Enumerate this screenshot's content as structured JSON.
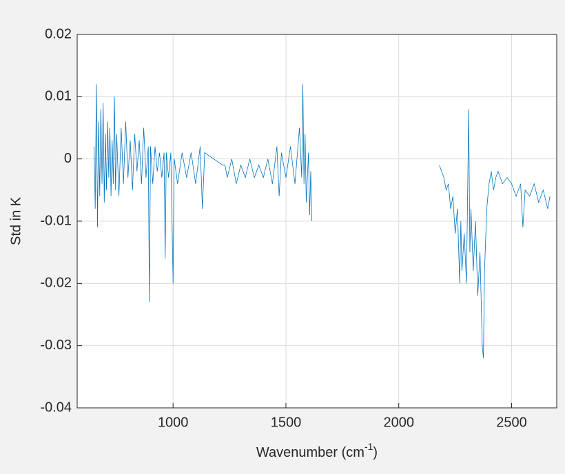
{
  "chart_data": {
    "type": "line",
    "ylabel": "Std in K",
    "xlabel": [
      "Wavenumber (cm",
      "-1",
      ")"
    ],
    "color": "#0072bd",
    "grid": true,
    "xlim": [
      575,
      2700
    ],
    "xticks": [
      1000,
      1500,
      2000,
      2500
    ],
    "ylim": [
      -0.04,
      0.02
    ],
    "yticks": [
      0.02,
      0.01,
      0,
      -0.01,
      -0.02,
      -0.03,
      -0.04
    ],
    "x": [
      650,
      655,
      660,
      665,
      670,
      675,
      680,
      685,
      690,
      695,
      700,
      705,
      710,
      715,
      720,
      725,
      730,
      735,
      740,
      745,
      750,
      760,
      770,
      780,
      790,
      800,
      810,
      820,
      830,
      840,
      850,
      860,
      870,
      880,
      890,
      895,
      900,
      910,
      920,
      930,
      940,
      950,
      960,
      965,
      970,
      980,
      990,
      1000,
      1005,
      1020,
      1040,
      1060,
      1080,
      1100,
      1120,
      1130,
      1140,
      1220,
      1230,
      1240,
      1260,
      1280,
      1300,
      1320,
      1340,
      1360,
      1380,
      1400,
      1420,
      1440,
      1460,
      1470,
      1480,
      1500,
      1520,
      1540,
      1560,
      1570,
      1575,
      1580,
      1585,
      1590,
      1600,
      1605,
      1610,
      1615,
      1900,
      2180,
      2190,
      2200,
      2210,
      2220,
      2230,
      2240,
      2250,
      2260,
      2270,
      2275,
      2280,
      2290,
      2300,
      2310,
      2315,
      2320,
      2330,
      2340,
      2350,
      2360,
      2370,
      2375,
      2380,
      2390,
      2400,
      2410,
      2420,
      2430,
      2440,
      2460,
      2480,
      2500,
      2520,
      2540,
      2550,
      2560,
      2580,
      2600,
      2620,
      2640,
      2660,
      2670
    ],
    "values": [
      0.002,
      -0.008,
      0.012,
      -0.011,
      0.006,
      -0.006,
      0.008,
      -0.004,
      0.009,
      -0.007,
      0.004,
      -0.005,
      0.006,
      -0.003,
      0.005,
      -0.006,
      0.003,
      -0.004,
      0.01,
      -0.005,
      0.004,
      -0.006,
      0.005,
      -0.004,
      0.006,
      -0.003,
      0.003,
      -0.005,
      0.004,
      -0.002,
      0.003,
      -0.004,
      0.005,
      -0.003,
      0.002,
      -0.023,
      0.002,
      -0.004,
      0.002,
      -0.002,
      0.001,
      -0.003,
      0.001,
      -0.016,
      0.001,
      -0.003,
      0.001,
      -0.02,
      0.0,
      -0.004,
      0.001,
      -0.003,
      0.001,
      -0.004,
      0.002,
      -0.008,
      0.001,
      -0.001,
      -0.001,
      -0.003,
      0.0,
      -0.004,
      -0.001,
      -0.003,
      0.0,
      -0.003,
      -0.001,
      -0.003,
      0.0,
      -0.004,
      0.002,
      -0.006,
      0.001,
      -0.003,
      0.002,
      -0.004,
      0.005,
      -0.003,
      0.012,
      -0.004,
      0.004,
      -0.007,
      0.001,
      -0.009,
      -0.002,
      -0.01,
      null,
      -0.001,
      -0.002,
      -0.003,
      -0.005,
      -0.004,
      -0.008,
      -0.006,
      -0.012,
      -0.008,
      -0.02,
      -0.01,
      -0.018,
      -0.012,
      -0.02,
      0.008,
      -0.015,
      -0.008,
      -0.018,
      -0.01,
      -0.022,
      -0.015,
      -0.03,
      -0.032,
      -0.018,
      -0.008,
      -0.004,
      -0.002,
      -0.005,
      -0.003,
      -0.002,
      -0.004,
      -0.003,
      -0.004,
      -0.006,
      -0.004,
      -0.011,
      -0.005,
      -0.006,
      -0.004,
      -0.007,
      -0.005,
      -0.008,
      -0.006
    ]
  }
}
